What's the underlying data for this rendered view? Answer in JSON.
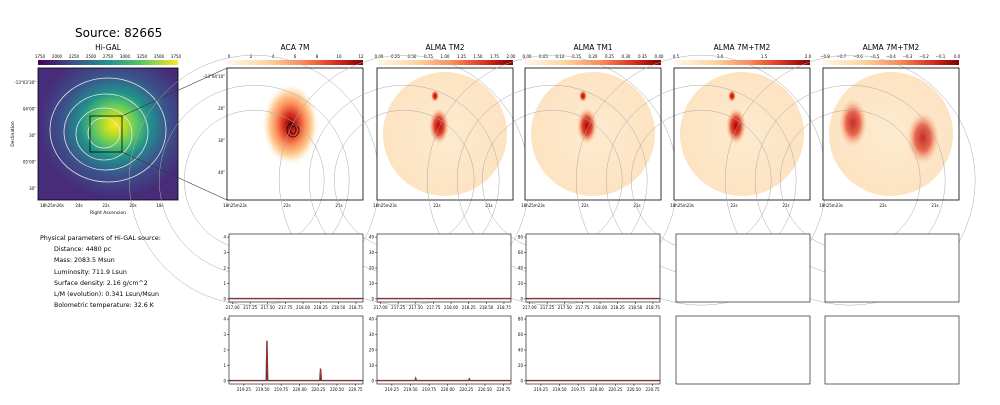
{
  "source_title": "Source: 82665",
  "higal": {
    "title": "Hi-GAL",
    "colorbar_ticks": [
      "1750",
      "2000",
      "2250",
      "2500",
      "2750",
      "3000",
      "3250",
      "3500",
      "3750"
    ],
    "dec_ticks": [
      "-13°03'30\"",
      "04'00\"",
      "30\"",
      "05'00\"",
      "30\""
    ],
    "ra_ticks": [
      "18h25m26s",
      "24s",
      "22s",
      "20s",
      "18s"
    ],
    "ylabel": "Declination",
    "xlabel": "Right Ascension"
  },
  "maps": [
    {
      "title": "ACA 7M",
      "ticks": [
        "0",
        "2",
        "4",
        "6",
        "8",
        "10",
        "12"
      ],
      "cmap": "orrd"
    },
    {
      "title": "ALMA TM2",
      "ticks": [
        "0.00",
        "0.25",
        "0.50",
        "0.75",
        "1.00",
        "1.25",
        "1.50",
        "1.75",
        "2.00"
      ],
      "cmap": "orrd"
    },
    {
      "title": "ALMA TM1",
      "ticks": [
        "0.00",
        "0.05",
        "0.10",
        "0.15",
        "0.20",
        "0.25",
        "0.30",
        "0.35",
        "0.40"
      ],
      "cmap": "orrd"
    },
    {
      "title": "ALMA 7M+TM2",
      "ticks": [
        "0.5",
        "1.0",
        "1.5",
        "2.0"
      ],
      "cmap": "orrd"
    },
    {
      "title": "ALMA 7M+TM2",
      "ticks": [
        "−0.8",
        "−0.7",
        "−0.6",
        "−0.5",
        "−0.4",
        "−0.3",
        "−0.2",
        "−0.1",
        "0.0"
      ],
      "cmap": "orrd"
    }
  ],
  "map_dec_ticks": [
    "-13°04'10\"",
    "20\"",
    "30\"",
    "40\""
  ],
  "map_ra_ticks": [
    "18h25m23s",
    "22s",
    "21s"
  ],
  "params": {
    "heading": "Physical parameters of Hi-GAL source:",
    "distance": "Distance: 4480 pc",
    "mass": "Mass: 2083.5 Msun",
    "luminosity": "Luminosity: 711.9 Lsun",
    "surface_density": "Surface density: 2.16 g/cm^2",
    "lm": "L/M (evolution): 0.341 Lsun/Msun",
    "tbol": "Bolometric temperature: 32.6 K"
  },
  "chart_data": [
    {
      "type": "line",
      "panel": "ACA 7M spectrum (lower sideband)",
      "x_ticks": [
        "217.00",
        "217.25",
        "217.50",
        "217.75",
        "218.00",
        "218.25",
        "218.50",
        "218.75"
      ],
      "y_ticks": [
        "0",
        "1",
        "2",
        "3",
        "4"
      ],
      "xlim": [
        216.95,
        218.85
      ],
      "ylim": [
        -0.2,
        4.2
      ],
      "x": [
        216.95,
        218.85
      ],
      "y": [
        0.02,
        0.02
      ]
    },
    {
      "type": "line",
      "panel": "ALMA TM2 spectrum (lower sideband)",
      "x_ticks": [
        "217.00",
        "217.25",
        "217.50",
        "217.75",
        "218.00",
        "218.25",
        "218.50",
        "218.75"
      ],
      "y_ticks": [
        "0",
        "10",
        "20",
        "30",
        "40"
      ],
      "xlim": [
        216.95,
        218.85
      ],
      "ylim": [
        -2,
        42
      ],
      "x": [
        216.95,
        218.85
      ],
      "y": [
        0.2,
        0.2
      ]
    },
    {
      "type": "line",
      "panel": "ALMA TM1 spectrum (lower sideband)",
      "x_ticks": [
        "217.00",
        "217.25",
        "217.50",
        "217.75",
        "218.00",
        "218.25",
        "218.50",
        "218.75"
      ],
      "y_ticks": [
        "0",
        "20",
        "40",
        "60",
        "80"
      ],
      "xlim": [
        216.95,
        218.85
      ],
      "ylim": [
        -4,
        84
      ],
      "x": [
        216.95,
        218.85
      ],
      "y": [
        0.5,
        0.5
      ]
    },
    {
      "type": "line",
      "panel": "ACA 7M spectrum (upper sideband)",
      "x_ticks": [
        "219.25",
        "219.50",
        "219.75",
        "220.00",
        "220.25",
        "220.50",
        "220.75"
      ],
      "y_ticks": [
        "0",
        "1",
        "2",
        "3",
        "4"
      ],
      "xlim": [
        219.05,
        220.85
      ],
      "ylim": [
        -0.2,
        4.2
      ],
      "x": [
        219.05,
        219.55,
        219.56,
        219.57,
        220.27,
        220.28,
        220.29,
        220.85
      ],
      "y": [
        0.02,
        0.02,
        2.6,
        0.02,
        0.02,
        0.8,
        0.02,
        0.02
      ]
    },
    {
      "type": "line",
      "panel": "ALMA TM2 spectrum (upper sideband)",
      "x_ticks": [
        "219.25",
        "219.50",
        "219.75",
        "220.00",
        "220.25",
        "220.50",
        "220.75"
      ],
      "y_ticks": [
        "0",
        "10",
        "20",
        "30",
        "40"
      ],
      "xlim": [
        219.05,
        220.85
      ],
      "ylim": [
        -2,
        42
      ],
      "x": [
        219.05,
        219.56,
        219.57,
        219.58,
        220.28,
        220.29,
        220.3,
        220.85
      ],
      "y": [
        0.2,
        0.2,
        1.6,
        0.2,
        0.2,
        1.2,
        0.2,
        0.2
      ]
    },
    {
      "type": "line",
      "panel": "ALMA TM1 spectrum (upper sideband)",
      "x_ticks": [
        "219.25",
        "219.50",
        "219.75",
        "220.00",
        "220.25",
        "220.50",
        "220.75"
      ],
      "y_ticks": [
        "0",
        "20",
        "40",
        "60",
        "80"
      ],
      "xlim": [
        219.05,
        220.85
      ],
      "ylim": [
        -4,
        84
      ],
      "x": [
        219.05,
        220.85
      ],
      "y": [
        0.5,
        0.5
      ]
    }
  ]
}
